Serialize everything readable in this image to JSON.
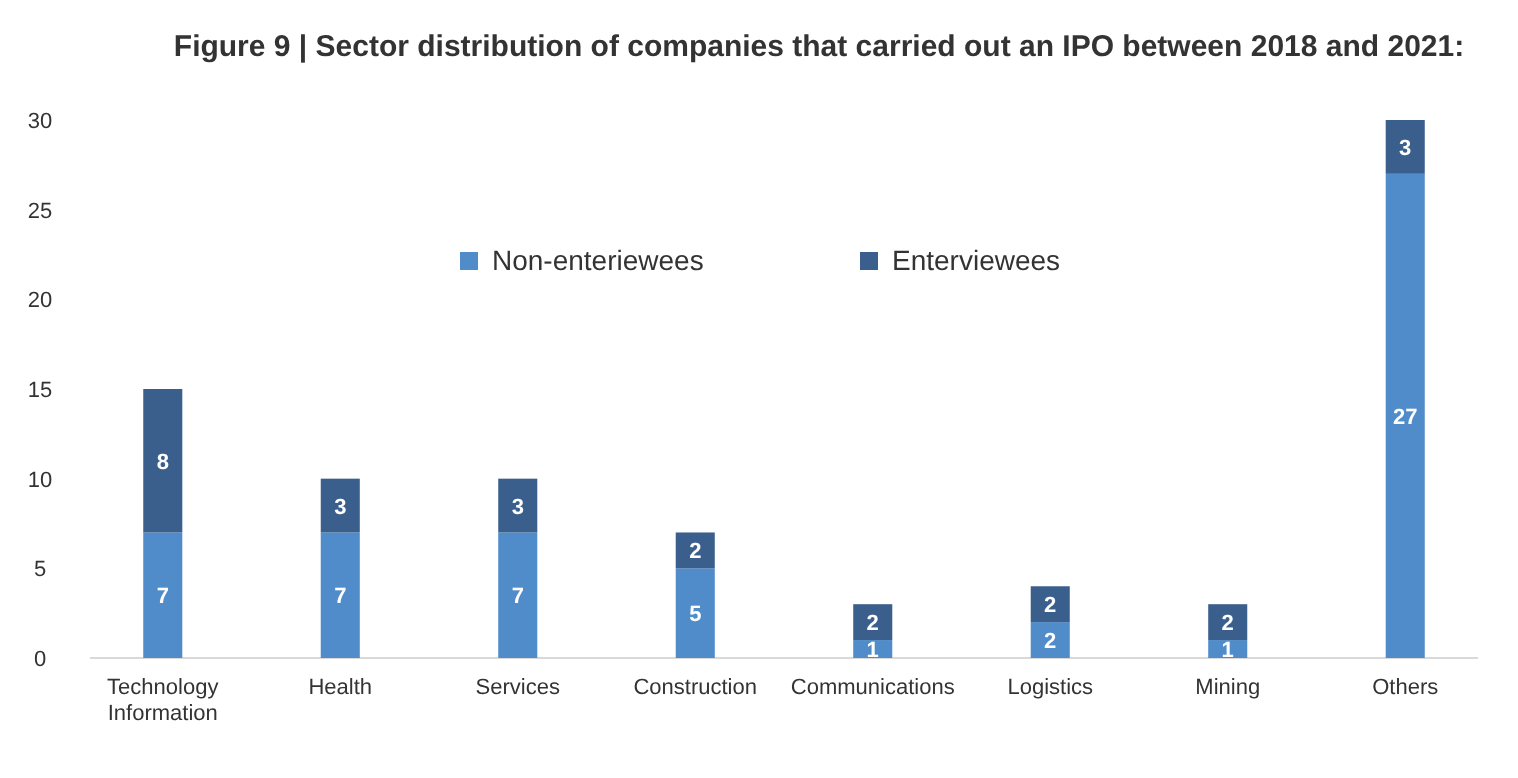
{
  "chart_data": {
    "type": "bar",
    "title": "Figure 9 | Sector distribution of companies that carried out an IPO between 2018 and 2021:",
    "categories": [
      "Technology Information",
      "Health",
      "Services",
      "Construction",
      "Communications",
      "Logistics",
      "Mining",
      "Others"
    ],
    "series": [
      {
        "name": "Non-enteriewees",
        "color": "#4f8cc9",
        "values": [
          7,
          7,
          7,
          5,
          1,
          2,
          1,
          27
        ]
      },
      {
        "name": "Enterviewees",
        "color": "#3b5f8c",
        "values": [
          8,
          3,
          3,
          2,
          2,
          2,
          2,
          3
        ]
      }
    ],
    "stacked": true,
    "data_labels": true,
    "ylim": [
      0,
      30
    ],
    "yticks": [
      0,
      5,
      10,
      15,
      20,
      25,
      30
    ],
    "grid": false,
    "legend": "top"
  }
}
